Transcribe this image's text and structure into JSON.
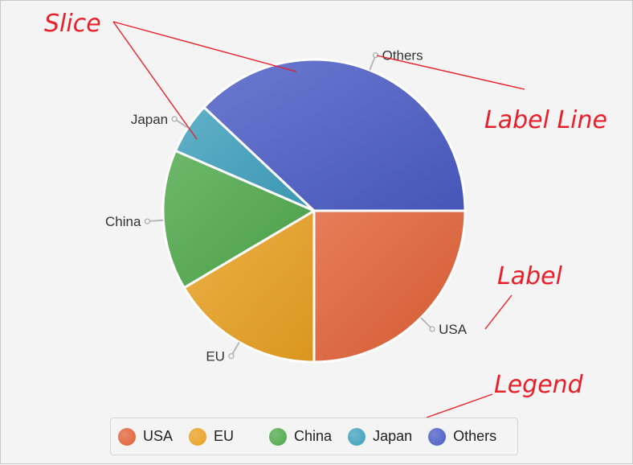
{
  "chart_data": {
    "type": "pie",
    "categories": [
      "USA",
      "EU",
      "China",
      "Japan",
      "Others"
    ],
    "values": [
      25,
      16.5,
      15,
      5.5,
      38
    ],
    "colors": [
      "#e06035",
      "#e8a020",
      "#4ea84a",
      "#3ea0bc",
      "#4a5cc4"
    ],
    "start_angle_deg": 0,
    "direction": "clockwise",
    "legend_position": "bottom"
  },
  "annotations": {
    "slice": "Slice",
    "label_line": "Label Line",
    "label": "Label",
    "legend": "Legend"
  }
}
